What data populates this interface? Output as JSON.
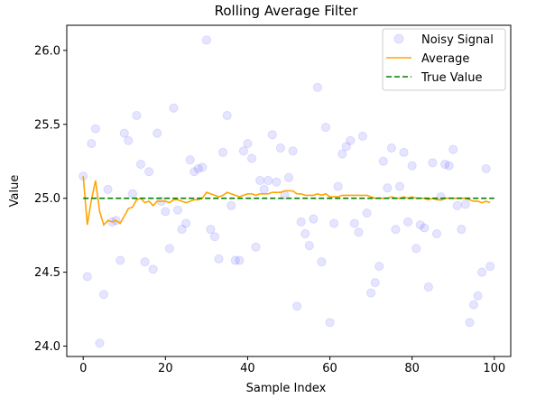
{
  "chart_data": {
    "type": "scatter+line",
    "title": "Rolling Average Filter",
    "xlabel": "Sample Index",
    "ylabel": "Value",
    "xlim": [
      -4,
      104
    ],
    "ylim": [
      23.93,
      26.17
    ],
    "xticks": [
      0,
      20,
      40,
      60,
      80,
      100
    ],
    "yticks": [
      24.0,
      24.5,
      25.0,
      25.5,
      26.0
    ],
    "ytick_labels": [
      "24.0",
      "24.5",
      "25.0",
      "25.5",
      "26.0"
    ],
    "legend_position": "top-right",
    "grid": false,
    "series": [
      {
        "name": "Noisy Signal",
        "kind": "scatter",
        "color": "#0000ff",
        "x": [
          0,
          1,
          2,
          3,
          4,
          5,
          6,
          7,
          8,
          9,
          10,
          11,
          12,
          13,
          14,
          15,
          16,
          17,
          18,
          19,
          20,
          21,
          22,
          23,
          24,
          25,
          26,
          27,
          28,
          29,
          30,
          31,
          32,
          33,
          34,
          35,
          36,
          37,
          38,
          39,
          40,
          41,
          42,
          43,
          44,
          45,
          46,
          47,
          48,
          49,
          50,
          51,
          52,
          53,
          54,
          55,
          56,
          57,
          58,
          59,
          60,
          61,
          62,
          63,
          64,
          65,
          66,
          67,
          68,
          69,
          70,
          71,
          72,
          73,
          74,
          75,
          76,
          77,
          78,
          79,
          80,
          81,
          82,
          83,
          84,
          85,
          86,
          87,
          88,
          89,
          90,
          91,
          92,
          93,
          94,
          95,
          96,
          97,
          98,
          99
        ],
        "y": [
          25.15,
          24.47,
          25.37,
          25.47,
          24.02,
          24.35,
          25.06,
          24.84,
          24.85,
          24.58,
          25.44,
          25.39,
          25.03,
          25.56,
          25.23,
          24.57,
          25.18,
          24.52,
          25.44,
          24.98,
          24.91,
          24.66,
          25.61,
          24.92,
          24.79,
          24.83,
          25.26,
          25.18,
          25.2,
          25.21,
          26.07,
          24.79,
          24.74,
          24.59,
          25.31,
          25.56,
          24.95,
          24.58,
          24.58,
          25.32,
          25.37,
          25.27,
          24.67,
          25.12,
          25.06,
          25.12,
          25.43,
          25.11,
          25.34,
          25.02,
          25.14,
          25.32,
          24.27,
          24.84,
          24.76,
          24.68,
          24.86,
          25.75,
          24.57,
          25.48,
          24.16,
          24.83,
          25.08,
          25.3,
          25.35,
          25.39,
          24.83,
          24.77,
          25.42,
          24.9,
          24.36,
          24.43,
          24.54,
          25.25,
          25.07,
          25.34,
          24.79,
          25.08,
          25.31,
          24.84,
          25.22,
          24.66,
          24.82,
          24.8,
          24.4,
          25.24,
          24.76,
          25.01,
          25.23,
          25.22,
          25.33,
          24.95,
          24.79,
          24.96,
          24.16,
          24.28,
          24.34,
          24.5,
          25.2,
          24.54
        ]
      },
      {
        "name": "Average",
        "kind": "line",
        "color": "#ffa500",
        "x": [
          0,
          1,
          2,
          3,
          4,
          5,
          6,
          7,
          8,
          9,
          10,
          11,
          12,
          13,
          14,
          15,
          16,
          17,
          18,
          19,
          20,
          21,
          22,
          23,
          24,
          25,
          26,
          27,
          28,
          29,
          30,
          31,
          32,
          33,
          34,
          35,
          36,
          37,
          38,
          39,
          40,
          41,
          42,
          43,
          44,
          45,
          46,
          47,
          48,
          49,
          50,
          51,
          52,
          53,
          54,
          55,
          56,
          57,
          58,
          59,
          60,
          61,
          62,
          63,
          64,
          65,
          66,
          67,
          68,
          69,
          70,
          71,
          72,
          73,
          74,
          75,
          76,
          77,
          78,
          79,
          80,
          81,
          82,
          83,
          84,
          85,
          86,
          87,
          88,
          89,
          90,
          91,
          92,
          93,
          94,
          95,
          96,
          97,
          98,
          99
        ],
        "y": [
          25.15,
          24.82,
          24.99,
          25.12,
          24.91,
          24.82,
          24.85,
          24.84,
          24.85,
          24.83,
          24.88,
          24.93,
          24.94,
          24.99,
          25.0,
          24.97,
          24.98,
          24.95,
          24.98,
          24.98,
          24.98,
          24.97,
          24.99,
          24.99,
          24.98,
          24.97,
          24.98,
          24.99,
          24.99,
          25.0,
          25.04,
          25.03,
          25.02,
          25.01,
          25.02,
          25.04,
          25.03,
          25.02,
          25.01,
          25.02,
          25.03,
          25.03,
          25.02,
          25.03,
          25.03,
          25.03,
          25.04,
          25.04,
          25.04,
          25.05,
          25.05,
          25.05,
          25.03,
          25.03,
          25.02,
          25.02,
          25.02,
          25.03,
          25.02,
          25.03,
          25.01,
          25.01,
          25.01,
          25.02,
          25.02,
          25.02,
          25.02,
          25.02,
          25.02,
          25.02,
          25.01,
          25.0,
          25.0,
          25.0,
          25.0,
          25.01,
          25.0,
          25.0,
          25.01,
          25.0,
          25.01,
          25.0,
          25.0,
          25.0,
          24.99,
          25.0,
          24.99,
          24.99,
          25.0,
          25.0,
          25.0,
          25.0,
          25.0,
          25.0,
          24.99,
          24.98,
          24.98,
          24.97,
          24.98,
          24.97
        ]
      },
      {
        "name": "True Value",
        "kind": "hline",
        "color": "#008000",
        "x": [
          0,
          100
        ],
        "y": [
          25.0,
          25.0
        ]
      }
    ]
  }
}
